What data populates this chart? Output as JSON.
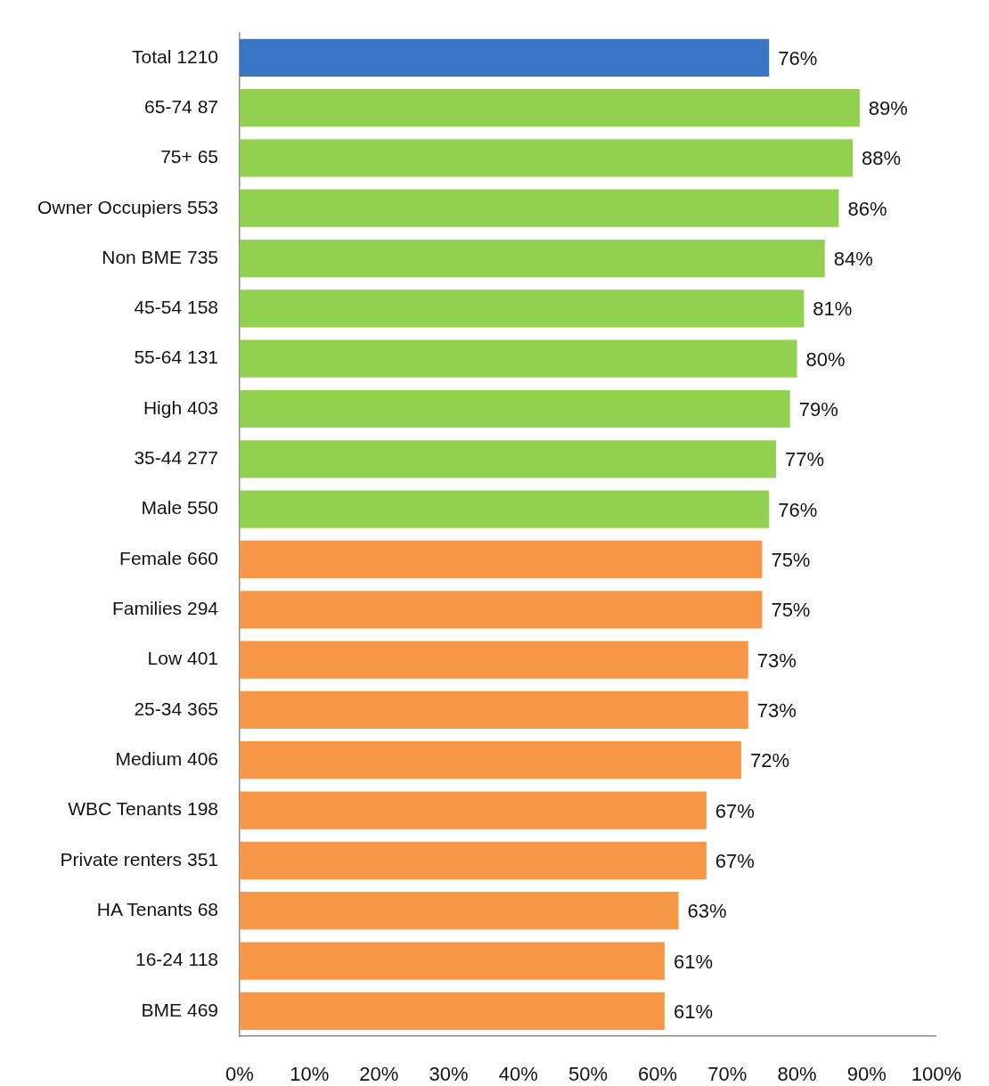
{
  "chart_data": {
    "type": "bar",
    "orientation": "horizontal",
    "categories": [
      "Total 1210",
      "65-74 87",
      "75+ 65",
      "Owner Occupiers 553",
      "Non BME 735",
      "45-54 158",
      "55-64 131",
      "High 403",
      "35-44 277",
      "Male 550",
      "Female 660",
      "Families 294",
      "Low 401",
      "25-34 365",
      "Medium 406",
      "WBC Tenants 198",
      "Private renters 351",
      "HA Tenants 68",
      "16-24 118",
      "BME 469"
    ],
    "values": [
      76,
      89,
      88,
      86,
      84,
      81,
      80,
      79,
      77,
      76,
      75,
      75,
      73,
      73,
      72,
      67,
      67,
      63,
      61,
      61
    ],
    "colors": [
      "#3a74c2",
      "#92d050",
      "#92d050",
      "#92d050",
      "#92d050",
      "#92d050",
      "#92d050",
      "#92d050",
      "#92d050",
      "#92d050",
      "#f79646",
      "#f79646",
      "#f79646",
      "#f79646",
      "#f79646",
      "#f79646",
      "#f79646",
      "#f79646",
      "#f79646",
      "#f79646"
    ],
    "value_labels": [
      "76%",
      "89%",
      "88%",
      "86%",
      "84%",
      "81%",
      "80%",
      "79%",
      "77%",
      "76%",
      "75%",
      "75%",
      "73%",
      "73%",
      "72%",
      "67%",
      "67%",
      "63%",
      "61%",
      "61%"
    ],
    "xlim": [
      0,
      100
    ],
    "xticks": [
      {
        "value": 0,
        "label": "0%"
      },
      {
        "value": 10,
        "label": "10%"
      },
      {
        "value": 20,
        "label": "20%"
      },
      {
        "value": 30,
        "label": "30%"
      },
      {
        "value": 40,
        "label": "40%"
      },
      {
        "value": 50,
        "label": "50%"
      },
      {
        "value": 60,
        "label": "60%"
      },
      {
        "value": 70,
        "label": "70%"
      },
      {
        "value": 80,
        "label": "80%"
      },
      {
        "value": 90,
        "label": "90%"
      },
      {
        "value": 100,
        "label": "100%"
      }
    ]
  }
}
